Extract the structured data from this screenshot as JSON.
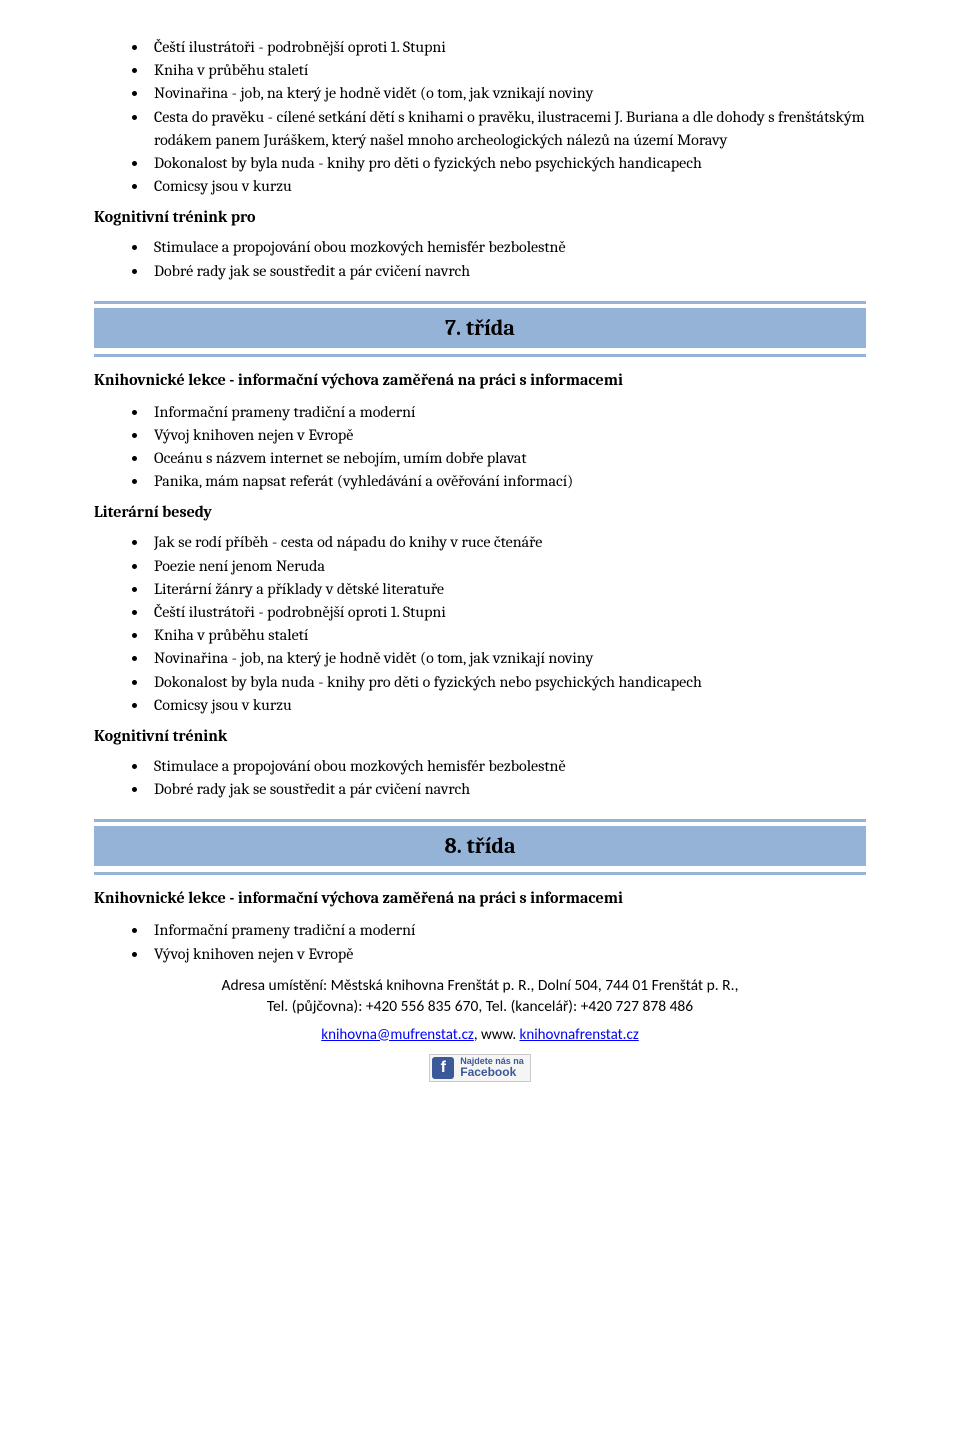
{
  "colors": {
    "section_bar": "#95b3d7",
    "link": "#0000ff",
    "fb_blue": "#3b5998"
  },
  "top_list": {
    "items": [
      "Čeští ilustrátoři - podrobnější oproti 1. Stupni",
      "Kniha v průběhu staletí",
      "Novinařina - job, na který je hodně vidět (o tom, jak vznikají noviny",
      "Cesta do pravěku - cílené setkání dětí s knihami o pravěku, ilustracemi J. Buriana a dle dohody s frenštátským rodákem panem Juráškem, který našel mnoho archeologických nálezů na území Moravy",
      "Dokonalost by byla nuda - knihy pro děti o fyzických nebo psychických handicapech",
      "Comicsy jsou v kurzu"
    ]
  },
  "heading_kog_pro": "Kognitivní trénink pro",
  "kog_list": {
    "items": [
      "Stimulace a propojování obou mozkových hemisfér bezbolestně",
      "Dobré rady jak se soustředit a pár cvičení navrch"
    ]
  },
  "section7": {
    "title": "7. třída"
  },
  "section8": {
    "title": "8. třída"
  },
  "heading_lekce": "Knihovnické lekce - informační výchova zaměřená na práci s informacemi",
  "lekce_list7": {
    "items": [
      "Informační prameny tradiční a moderní",
      "Vývoj knihoven nejen v Evropě",
      "Oceánu s názvem internet se nebojím, umím dobře plavat",
      "Panika, mám napsat referát (vyhledávání a ověřování informací)"
    ]
  },
  "heading_literarni": "Literární besedy",
  "literarni_list": {
    "items": [
      "Jak se rodí příběh - cesta od nápadu do knihy v ruce čtenáře",
      "Poezie není jenom Neruda",
      "Literární žánry a příklady v dětské literatuře",
      "Čeští ilustrátoři - podrobnější oproti 1. Stupni",
      "Kniha v průběhu staletí",
      "Novinařina - job, na který je hodně vidět (o tom, jak vznikají noviny",
      "Dokonalost by byla nuda - knihy pro děti o fyzických nebo psychických handicapech",
      "Comicsy jsou v kurzu"
    ]
  },
  "heading_kog": "Kognitivní trénink",
  "kog_list2": {
    "items": [
      "Stimulace a propojování obou mozkových hemisfér bezbolestně",
      "Dobré rady jak se soustředit a pár cvičení navrch"
    ]
  },
  "lekce_list8": {
    "items": [
      "Informační prameny tradiční a moderní",
      "Vývoj knihoven nejen v Evropě"
    ]
  },
  "footer": {
    "address": "Adresa umístění: Městská knihovna Frenštát p. R., Dolní 504, 744 01 Frenštát p. R.,",
    "phones": "Tel. (půjčovna): +420 556 835 670,   Tel. (kancelář): +420 727 878 486",
    "email": "knihovna@mufrenstat.cz",
    "sep": ", www. ",
    "web": "knihovnafrenstat.cz",
    "fb_small": "Najdete nás na",
    "fb_big": "Facebook"
  }
}
